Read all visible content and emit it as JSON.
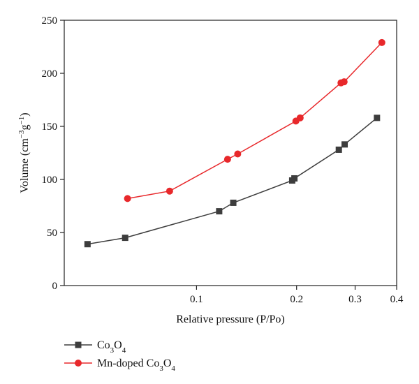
{
  "chart_data": {
    "type": "line",
    "xlabel": "Relative pressure (P/Po)",
    "ylabel_parts": {
      "base": "Volume (cm",
      "sup1": "−3",
      "mid": "g",
      "sup2": "−1",
      "end": ")"
    },
    "x_scale": "log",
    "xlim": [
      0.04,
      0.4
    ],
    "ylim": [
      0,
      250
    ],
    "x_ticks": [
      {
        "value": 0.1,
        "label": "0.1"
      },
      {
        "value": 0.2,
        "label": "0.2"
      },
      {
        "value": 0.3,
        "label": "0.3"
      },
      {
        "value": 0.4,
        "label": "0.4"
      }
    ],
    "y_ticks": [
      {
        "value": 0,
        "label": "0"
      },
      {
        "value": 50,
        "label": "50"
      },
      {
        "value": 100,
        "label": "100"
      },
      {
        "value": 150,
        "label": "150"
      },
      {
        "value": 200,
        "label": "200"
      },
      {
        "value": 250,
        "label": "250"
      }
    ],
    "grid": false,
    "legend_position": "bottom-left, below plot",
    "series": [
      {
        "legend": {
          "base": "Co",
          "sub1": "3",
          "mid": "O",
          "sub2": "4"
        },
        "color": "#3d3d3d",
        "marker": "square",
        "x": [
          0.047,
          0.061,
          0.117,
          0.129,
          0.194,
          0.197,
          0.268,
          0.279,
          0.349
        ],
        "y": [
          39,
          45,
          70,
          78,
          99,
          101,
          128,
          133,
          158
        ]
      },
      {
        "legend": {
          "prefix": "Mn-doped Co",
          "sub1": "3",
          "mid": "O",
          "sub2": "4"
        },
        "color": "#e8282b",
        "marker": "circle",
        "x": [
          0.062,
          0.083,
          0.124,
          0.133,
          0.199,
          0.205,
          0.272,
          0.278,
          0.361
        ],
        "y": [
          82,
          89,
          119,
          124,
          155,
          158,
          191,
          192,
          229
        ]
      }
    ]
  }
}
